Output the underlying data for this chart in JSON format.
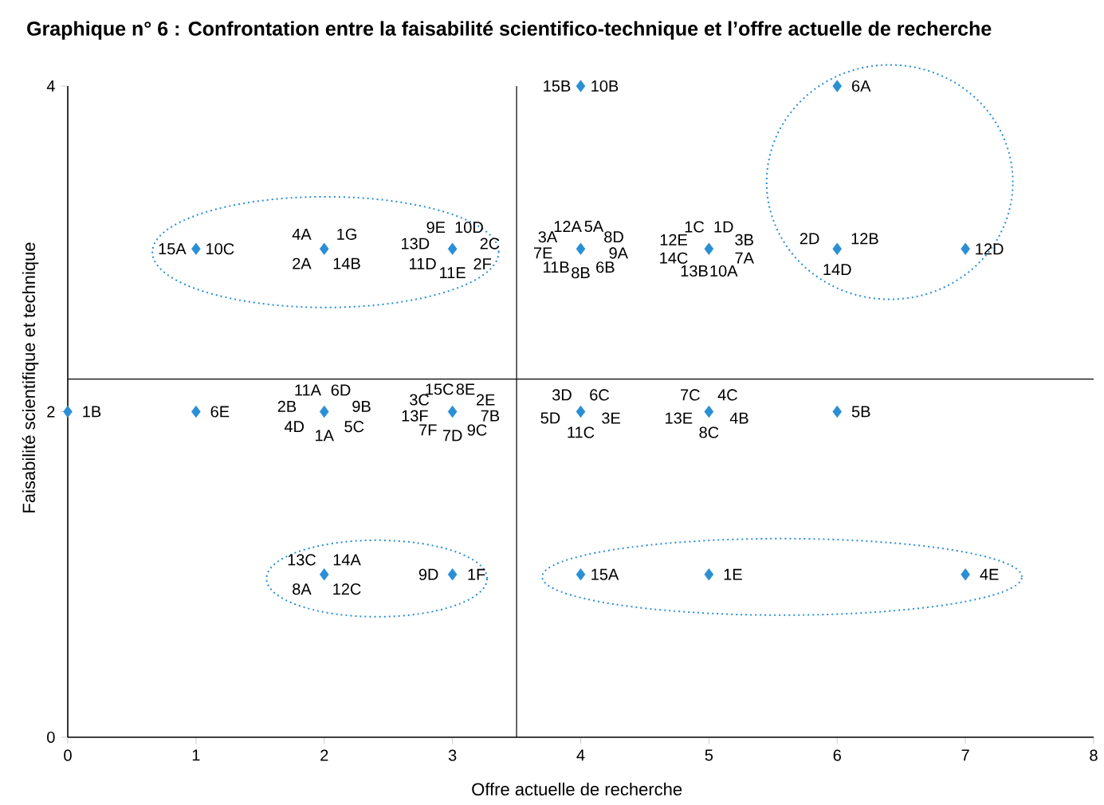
{
  "chart_data": {
    "type": "scatter",
    "title": "Graphique n° 6 : Confrontation entre la faisabilité scientifico-technique et l’offre actuelle de recherche",
    "xlabel": "Offre actuelle de recherche",
    "ylabel": "Faisabilité scientifique et technique",
    "xlim": [
      0,
      8
    ],
    "ylim": [
      0,
      4
    ],
    "xticks": [
      0,
      1,
      2,
      3,
      4,
      5,
      6,
      7,
      8
    ],
    "yticks": [
      0,
      2,
      4
    ],
    "marker": "diamond",
    "grid": false,
    "series": [
      {
        "color": "#2a8fd4",
        "x": [
          0,
          1,
          2,
          3,
          4,
          5,
          6,
          1,
          2,
          3,
          4,
          5,
          6,
          7,
          4,
          6,
          2,
          3,
          4,
          5,
          7
        ],
        "values": [
          2,
          2,
          2,
          2,
          2,
          2,
          2,
          3,
          3,
          3,
          3,
          3,
          3,
          3,
          4,
          4,
          1,
          1,
          1,
          1,
          1
        ]
      }
    ],
    "ref_lines": [
      {
        "axis": "y",
        "value": 2.2,
        "color": "#000000"
      },
      {
        "axis": "x",
        "value": 3.5,
        "color": "#000000"
      }
    ],
    "annotations": [
      {
        "text": "1B",
        "x": 0,
        "y": 2
      },
      {
        "text": "6E",
        "x": 1,
        "y": 2
      },
      {
        "text": "11A",
        "x": 2,
        "y": 2
      },
      {
        "text": "6D",
        "x": 2,
        "y": 2
      },
      {
        "text": "9B",
        "x": 2,
        "y": 2
      },
      {
        "text": "5C",
        "x": 2,
        "y": 2
      },
      {
        "text": "1A",
        "x": 2,
        "y": 2
      },
      {
        "text": "4D",
        "x": 2,
        "y": 2
      },
      {
        "text": "2B",
        "x": 2,
        "y": 2
      },
      {
        "text": "15C",
        "x": 3,
        "y": 2
      },
      {
        "text": "8E",
        "x": 3,
        "y": 2
      },
      {
        "text": "2E",
        "x": 3,
        "y": 2
      },
      {
        "text": "7B",
        "x": 3,
        "y": 2
      },
      {
        "text": "9C",
        "x": 3,
        "y": 2
      },
      {
        "text": "7D",
        "x": 3,
        "y": 2
      },
      {
        "text": "7F",
        "x": 3,
        "y": 2
      },
      {
        "text": "13F",
        "x": 3,
        "y": 2
      },
      {
        "text": "3C",
        "x": 3,
        "y": 2
      },
      {
        "text": "3D",
        "x": 4,
        "y": 2
      },
      {
        "text": "6C",
        "x": 4,
        "y": 2
      },
      {
        "text": "3E",
        "x": 4,
        "y": 2
      },
      {
        "text": "11C",
        "x": 4,
        "y": 2
      },
      {
        "text": "5D",
        "x": 4,
        "y": 2
      },
      {
        "text": "7C",
        "x": 5,
        "y": 2
      },
      {
        "text": "4C",
        "x": 5,
        "y": 2
      },
      {
        "text": "4B",
        "x": 5,
        "y": 2
      },
      {
        "text": "8C",
        "x": 5,
        "y": 2
      },
      {
        "text": "13E",
        "x": 5,
        "y": 2
      },
      {
        "text": "5B",
        "x": 6,
        "y": 2
      },
      {
        "text": "15A",
        "x": 1,
        "y": 3
      },
      {
        "text": "10C",
        "x": 1,
        "y": 3
      },
      {
        "text": "4A",
        "x": 2,
        "y": 3
      },
      {
        "text": "1G",
        "x": 2,
        "y": 3
      },
      {
        "text": "14B",
        "x": 2,
        "y": 3
      },
      {
        "text": "2A",
        "x": 2,
        "y": 3
      },
      {
        "text": "9E",
        "x": 3,
        "y": 3
      },
      {
        "text": "10D",
        "x": 3,
        "y": 3
      },
      {
        "text": "2C",
        "x": 3,
        "y": 3
      },
      {
        "text": "2F",
        "x": 3,
        "y": 3
      },
      {
        "text": "11E",
        "x": 3,
        "y": 3
      },
      {
        "text": "11D",
        "x": 3,
        "y": 3
      },
      {
        "text": "13D",
        "x": 3,
        "y": 3
      },
      {
        "text": "12A",
        "x": 4,
        "y": 3
      },
      {
        "text": "5A",
        "x": 4,
        "y": 3
      },
      {
        "text": "8D",
        "x": 4,
        "y": 3
      },
      {
        "text": "9A",
        "x": 4,
        "y": 3
      },
      {
        "text": "6B",
        "x": 4,
        "y": 3
      },
      {
        "text": "8B",
        "x": 4,
        "y": 3
      },
      {
        "text": "11B",
        "x": 4,
        "y": 3
      },
      {
        "text": "7E",
        "x": 4,
        "y": 3
      },
      {
        "text": "3A",
        "x": 4,
        "y": 3
      },
      {
        "text": "1C",
        "x": 5,
        "y": 3
      },
      {
        "text": "1D",
        "x": 5,
        "y": 3
      },
      {
        "text": "3B",
        "x": 5,
        "y": 3
      },
      {
        "text": "7A",
        "x": 5,
        "y": 3
      },
      {
        "text": "10A",
        "x": 5,
        "y": 3
      },
      {
        "text": "13B",
        "x": 5,
        "y": 3
      },
      {
        "text": "14C",
        "x": 5,
        "y": 3
      },
      {
        "text": "12E",
        "x": 5,
        "y": 3
      },
      {
        "text": "2D",
        "x": 6,
        "y": 3
      },
      {
        "text": "12B",
        "x": 6,
        "y": 3
      },
      {
        "text": "14D",
        "x": 6,
        "y": 3
      },
      {
        "text": "12D",
        "x": 7,
        "y": 3
      },
      {
        "text": "15B",
        "x": 4,
        "y": 4
      },
      {
        "text": "10B",
        "x": 4,
        "y": 4
      },
      {
        "text": "6A",
        "x": 6,
        "y": 4
      },
      {
        "text": "13C",
        "x": 2,
        "y": 1
      },
      {
        "text": "14A",
        "x": 2,
        "y": 1
      },
      {
        "text": "12C",
        "x": 2,
        "y": 1
      },
      {
        "text": "8A",
        "x": 2,
        "y": 1
      },
      {
        "text": "9D",
        "x": 3,
        "y": 1
      },
      {
        "text": "1F",
        "x": 3,
        "y": 1
      },
      {
        "text": "15A",
        "x": 4,
        "y": 1
      },
      {
        "text": "1E",
        "x": 5,
        "y": 1
      },
      {
        "text": "4E",
        "x": 7,
        "y": 1
      }
    ]
  }
}
